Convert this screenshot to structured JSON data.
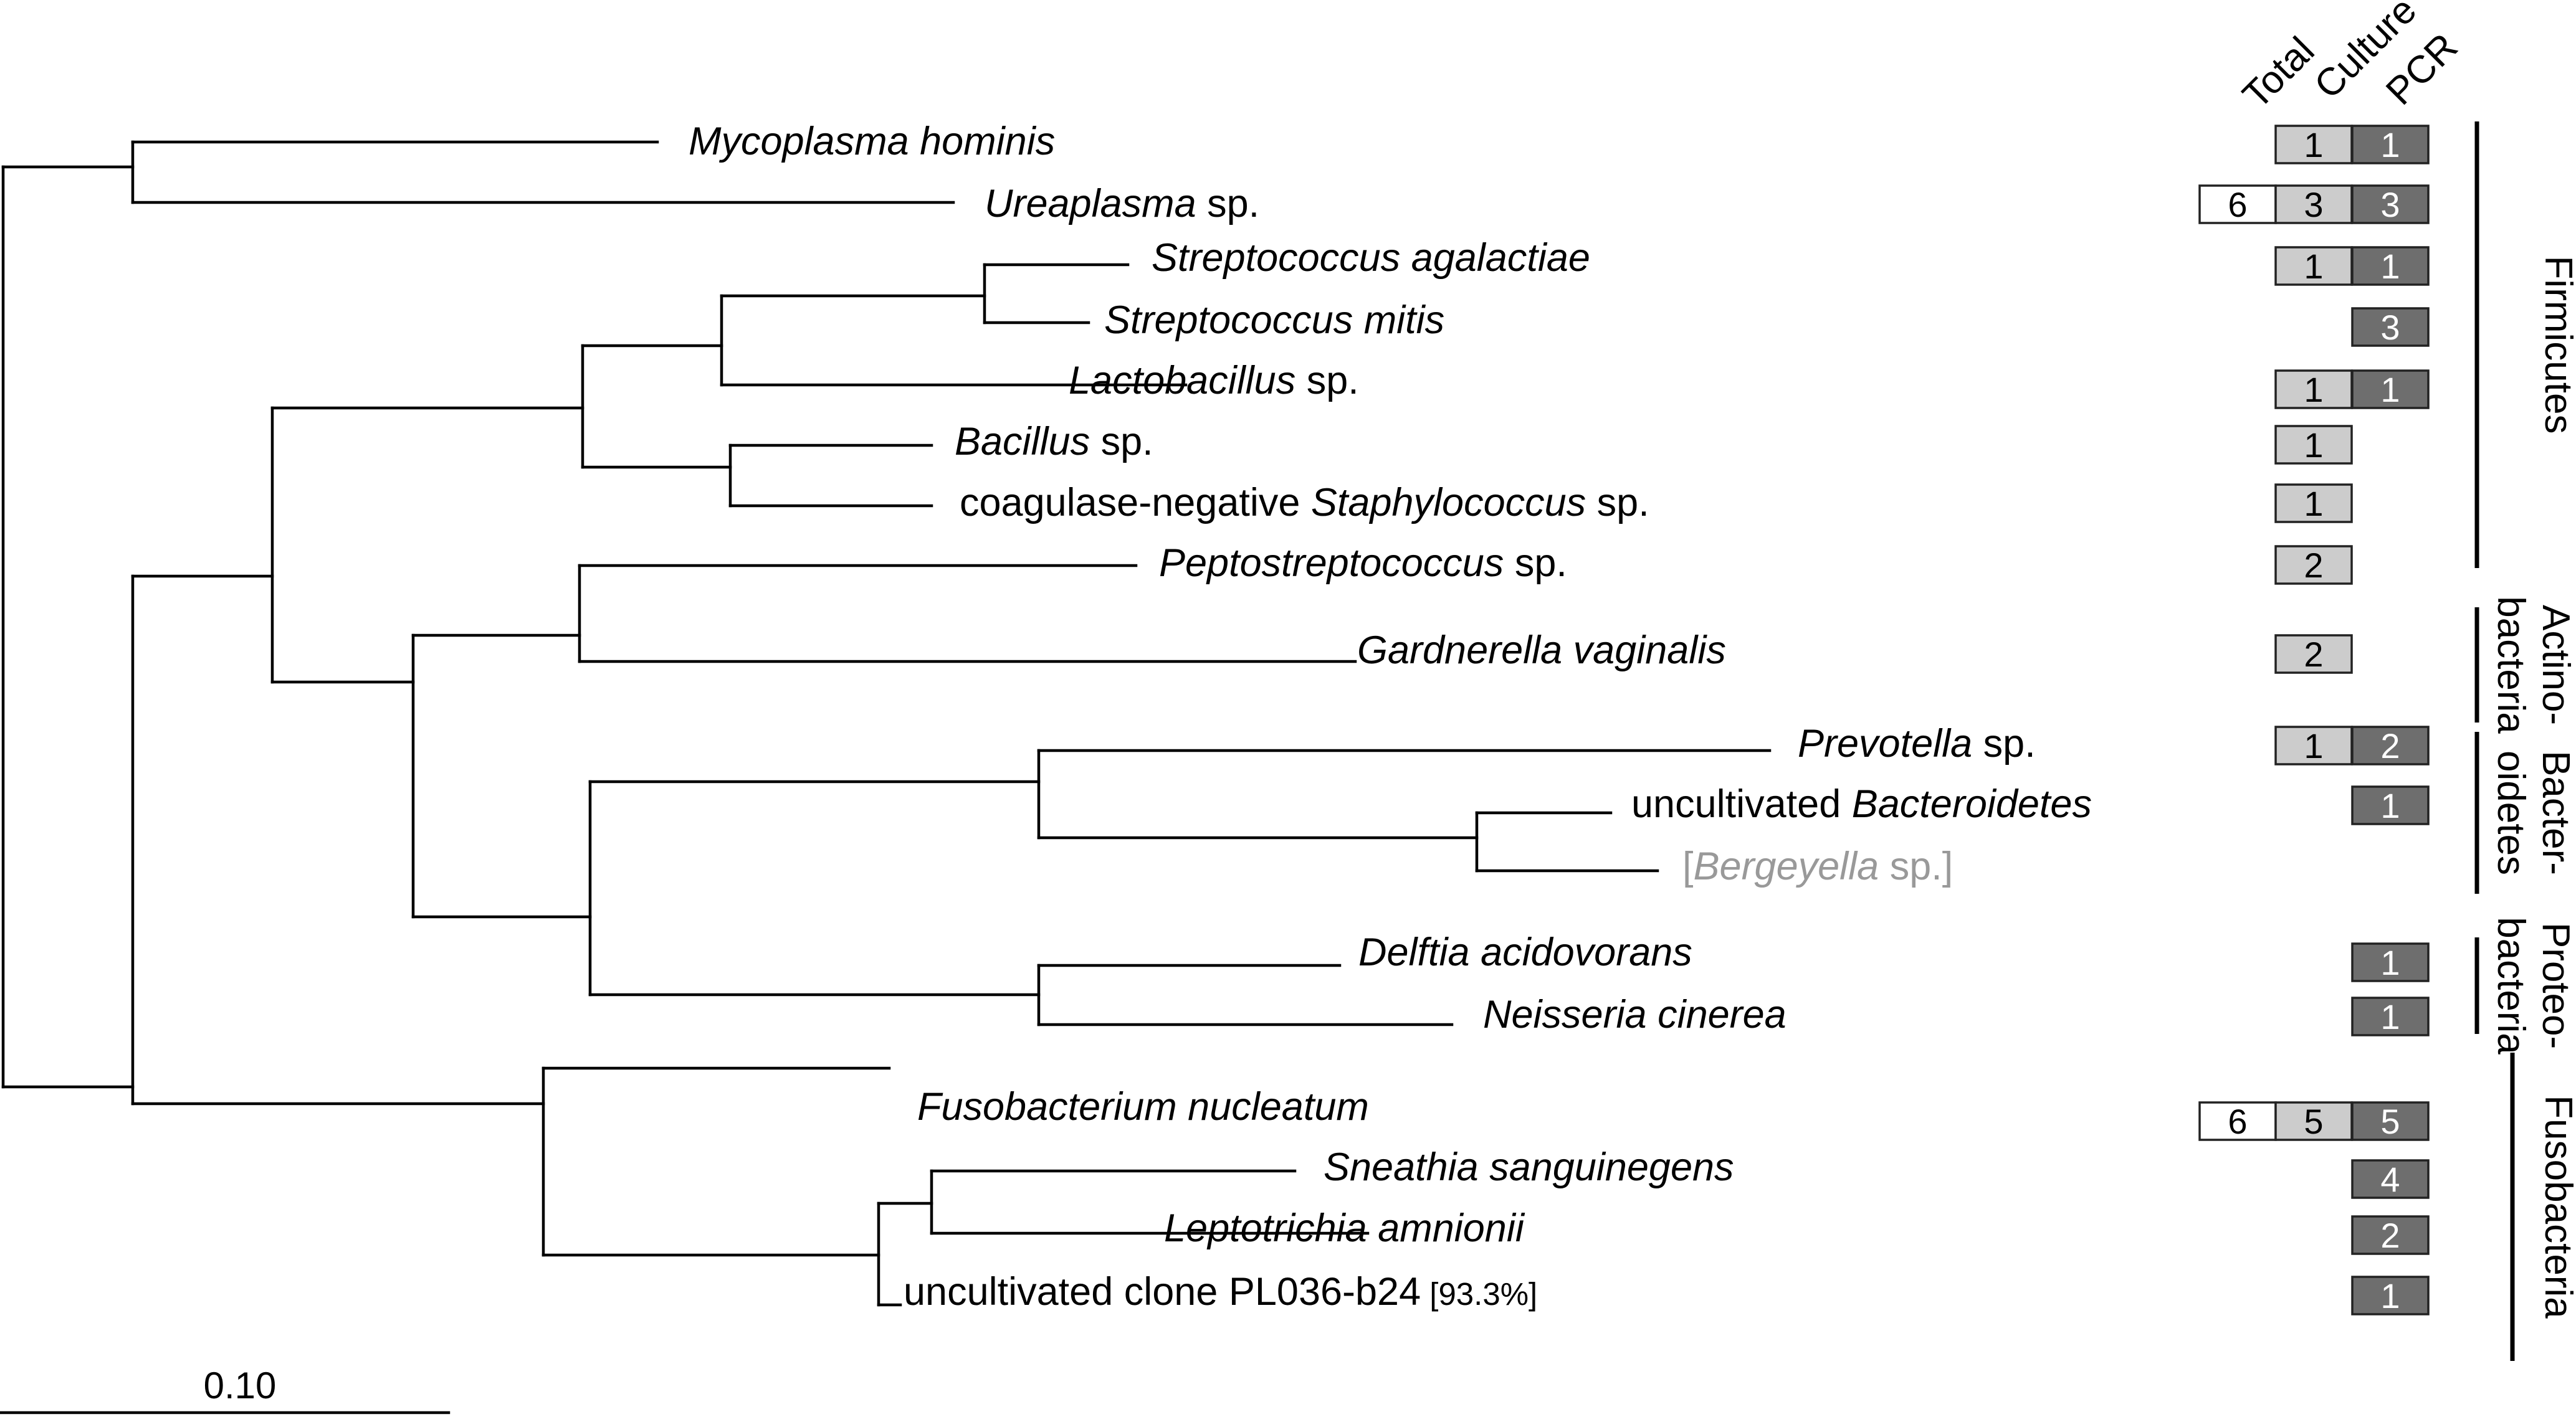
{
  "column_headers": [
    "Total",
    "Culture",
    "PCR"
  ],
  "colors": {
    "total_fill": "#ffffff",
    "culture_fill": "#cccccc",
    "pcr_fill": "#6e6e6e",
    "culture_text": "#000000",
    "pcr_text": "#ffffff",
    "faded_text": "#999999"
  },
  "taxa": [
    {
      "name": [
        {
          "t": "Mycoplasma hominis",
          "i": true
        }
      ],
      "counts": {
        "total": "",
        "culture": "1",
        "pcr": "1"
      }
    },
    {
      "name": [
        {
          "t": "Ureaplasma",
          "i": true
        },
        {
          "t": " sp.",
          "i": false
        }
      ],
      "counts": {
        "total": "6",
        "culture": "3",
        "pcr": "3"
      }
    },
    {
      "name": [
        {
          "t": "Streptococcus agalactiae",
          "i": true
        }
      ],
      "counts": {
        "total": "",
        "culture": "1",
        "pcr": "1"
      }
    },
    {
      "name": [
        {
          "t": "Streptococcus mitis",
          "i": true
        }
      ],
      "counts": {
        "total": "",
        "culture": "",
        "pcr": "3"
      }
    },
    {
      "name": [
        {
          "t": "Lactobacillus",
          "i": true
        },
        {
          "t": " sp.",
          "i": false
        }
      ],
      "counts": {
        "total": "",
        "culture": "1",
        "pcr": "1"
      }
    },
    {
      "name": [
        {
          "t": "Bacillus",
          "i": true
        },
        {
          "t": " sp.",
          "i": false
        }
      ],
      "counts": {
        "total": "",
        "culture": "1",
        "pcr": ""
      }
    },
    {
      "name": [
        {
          "t": "coagulase-negative ",
          "i": false
        },
        {
          "t": "Staphylococcus",
          "i": true
        },
        {
          "t": " sp.",
          "i": false
        }
      ],
      "counts": {
        "total": "",
        "culture": "1",
        "pcr": ""
      }
    },
    {
      "name": [
        {
          "t": "Peptostreptococcus",
          "i": true
        },
        {
          "t": " sp.",
          "i": false
        }
      ],
      "counts": {
        "total": "",
        "culture": "2",
        "pcr": ""
      }
    },
    {
      "name": [
        {
          "t": "Gardnerella vaginalis",
          "i": true
        }
      ],
      "counts": {
        "total": "",
        "culture": "2",
        "pcr": ""
      }
    },
    {
      "name": [
        {
          "t": "Prevotella",
          "i": true
        },
        {
          "t": " sp.",
          "i": false
        }
      ],
      "counts": {
        "total": "",
        "culture": "1",
        "pcr": "2"
      }
    },
    {
      "name": [
        {
          "t": "uncultivated ",
          "i": false
        },
        {
          "t": "Bacteroidetes",
          "i": true
        }
      ],
      "counts": {
        "total": "",
        "culture": "",
        "pcr": "1"
      }
    },
    {
      "name": [
        {
          "t": "[",
          "i": false
        },
        {
          "t": "Bergeyella",
          "i": true
        },
        {
          "t": " sp.]",
          "i": false
        }
      ],
      "faded": true,
      "counts": {
        "total": "",
        "culture": "",
        "pcr": ""
      }
    },
    {
      "name": [
        {
          "t": "Delftia acidovorans",
          "i": true
        }
      ],
      "counts": {
        "total": "",
        "culture": "",
        "pcr": "1"
      }
    },
    {
      "name": [
        {
          "t": "Neisseria cinerea",
          "i": true
        }
      ],
      "counts": {
        "total": "",
        "culture": "",
        "pcr": "1"
      }
    },
    {
      "name": [
        {
          "t": "Fusobacterium nucleatum",
          "i": true
        }
      ],
      "counts": {
        "total": "6",
        "culture": "5",
        "pcr": "5"
      }
    },
    {
      "name": [
        {
          "t": "Sneathia sanguinegens",
          "i": true
        }
      ],
      "counts": {
        "total": "",
        "culture": "",
        "pcr": "4"
      }
    },
    {
      "name": [
        {
          "t": "Leptotrichia amnionii",
          "i": true
        }
      ],
      "counts": {
        "total": "",
        "culture": "",
        "pcr": "2"
      }
    },
    {
      "name": [
        {
          "t": "uncultivated clone PL036-b24",
          "i": false
        },
        {
          "t": " [93.3%]",
          "i": false,
          "small": true
        }
      ],
      "counts": {
        "total": "",
        "culture": "",
        "pcr": "1"
      }
    }
  ],
  "groups": [
    {
      "lines": [
        "Firmicutes"
      ]
    },
    {
      "lines": [
        "Actino-",
        "bacteria"
      ]
    },
    {
      "lines": [
        "Bacter-",
        "oidetes"
      ]
    },
    {
      "lines": [
        "Proteo-",
        "bacteria"
      ]
    },
    {
      "lines": [
        "Fusobacteria"
      ]
    }
  ],
  "scale_bar": {
    "label": "0.10"
  }
}
